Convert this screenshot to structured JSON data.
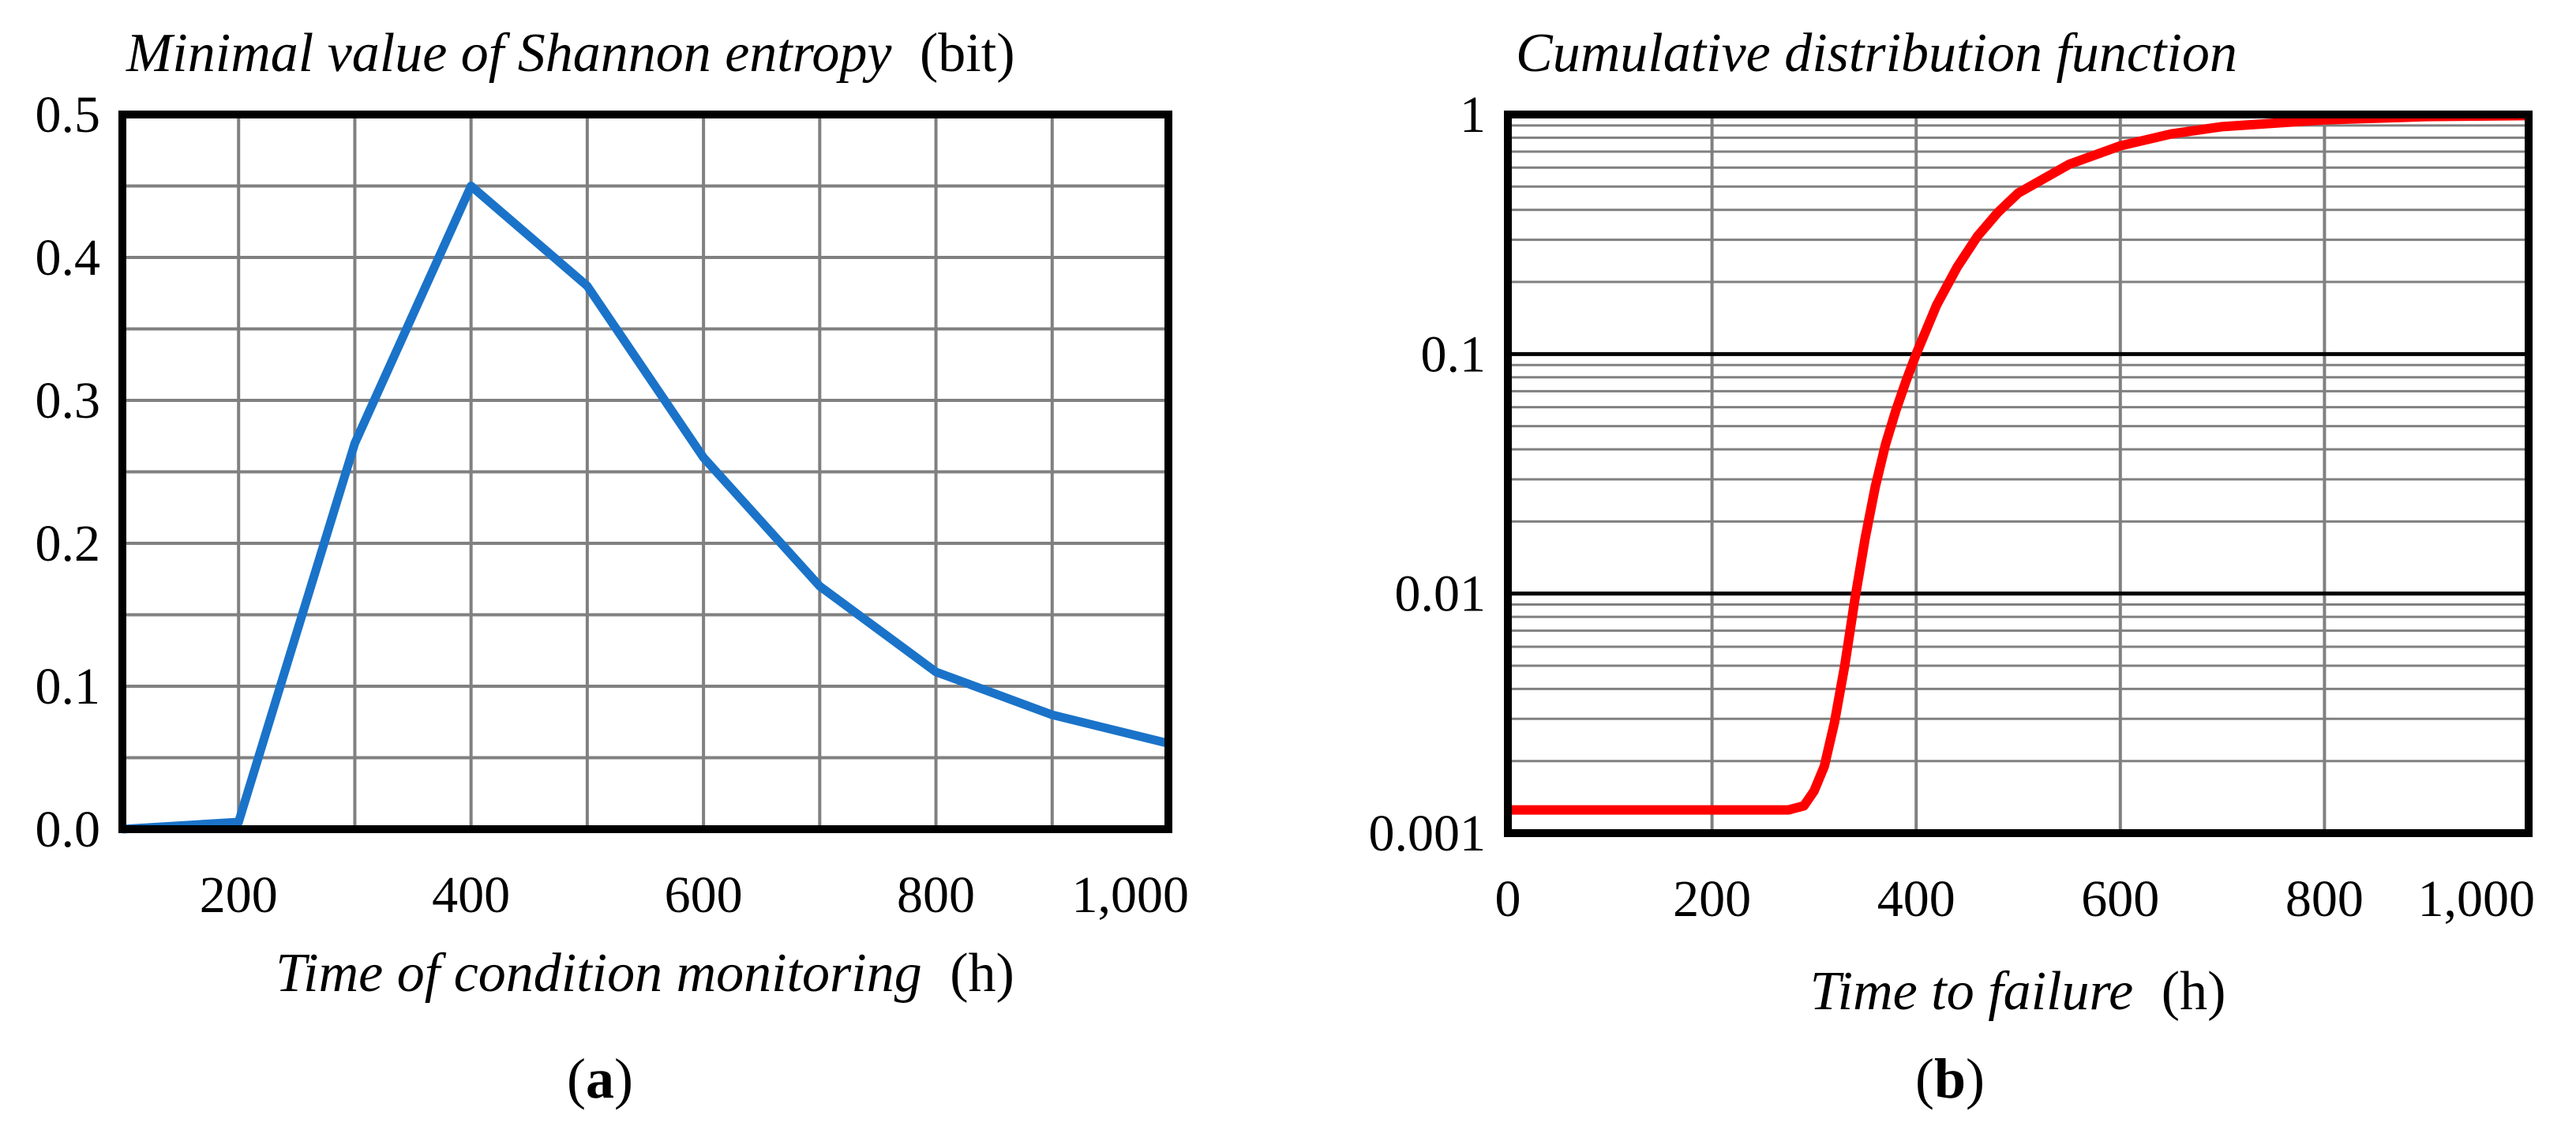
{
  "chart_data": [
    {
      "id": "a",
      "type": "line",
      "panel_label": "a",
      "title": "Minimal value of Shannon entropy",
      "title_unit": "(bit)",
      "xlabel": "Time of condition monitoring",
      "xlabel_unit": "(h)",
      "ylabel": "",
      "xlim": [
        100,
        1000
      ],
      "ylim": [
        0,
        0.5
      ],
      "grid": true,
      "x_ticks": [
        200,
        400,
        600,
        800,
        1000
      ],
      "x_tick_labels": [
        "200",
        "400",
        "600",
        "800",
        "1,000"
      ],
      "x_grid": [
        200,
        300,
        400,
        500,
        600,
        700,
        800,
        900
      ],
      "y_ticks": [
        0,
        0.1,
        0.2,
        0.3,
        0.4,
        0.5
      ],
      "y_tick_labels": [
        "0.0",
        "0.1",
        "0.2",
        "0.3",
        "0.4",
        "0.5"
      ],
      "y_grid": [
        0.05,
        0.1,
        0.15,
        0.2,
        0.25,
        0.3,
        0.35,
        0.4,
        0.45
      ],
      "line_color": "#1a73c9",
      "series": [
        {
          "name": "Minimal value of Shannon entropy",
          "x": [
            100,
            200,
            300,
            400,
            500,
            600,
            700,
            800,
            900,
            1000
          ],
          "values": [
            0.0,
            0.005,
            0.27,
            0.45,
            0.38,
            0.26,
            0.17,
            0.11,
            0.08,
            0.06
          ]
        }
      ]
    },
    {
      "id": "b",
      "type": "line",
      "panel_label": "b",
      "title": "Cumulative distribution function",
      "xlabel": "Time to failure",
      "xlabel_unit": "(h)",
      "ylabel": "",
      "yscale": "log",
      "xlim": [
        0,
        1000
      ],
      "ylim": [
        0.001,
        1
      ],
      "grid": true,
      "x_ticks": [
        0,
        200,
        400,
        600,
        800,
        1000
      ],
      "x_tick_labels": [
        "0",
        "200",
        "400",
        "600",
        "800",
        "1,000"
      ],
      "x_grid": [
        200,
        400,
        600,
        800
      ],
      "y_ticks": [
        0.001,
        0.01,
        0.1,
        1
      ],
      "y_tick_labels": [
        "0.001",
        "0.01",
        "0.1",
        "1"
      ],
      "line_color": "#ff0000",
      "series": [
        {
          "name": "Cumulative distribution function",
          "x": [
            0,
            275,
            290,
            300,
            310,
            320,
            330,
            340,
            350,
            360,
            370,
            380,
            390,
            400,
            420,
            440,
            460,
            480,
            500,
            550,
            600,
            650,
            700,
            800,
            900,
            1000
          ],
          "values": [
            0.00125,
            0.00125,
            0.0013,
            0.0015,
            0.0019,
            0.0029,
            0.005,
            0.0095,
            0.017,
            0.028,
            0.042,
            0.058,
            0.077,
            0.1,
            0.16,
            0.23,
            0.31,
            0.39,
            0.47,
            0.62,
            0.74,
            0.83,
            0.89,
            0.95,
            0.98,
            0.99
          ]
        }
      ]
    }
  ]
}
